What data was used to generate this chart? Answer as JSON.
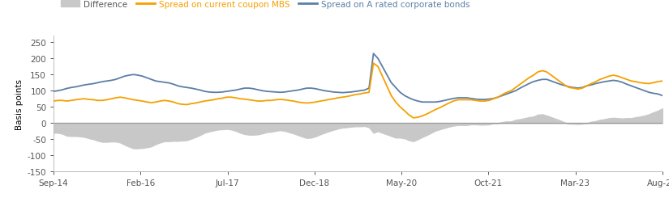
{
  "ylabel": "Basis points",
  "legend_labels": [
    "Difference",
    "Spread on current coupon MBS",
    "Spread on A rated corporate bonds"
  ],
  "background_color": "#ffffff",
  "ylim": [
    -150,
    270
  ],
  "yticks": [
    -150,
    -100,
    -50,
    0,
    50,
    100,
    150,
    200,
    250
  ],
  "x_tick_labels": [
    "Sep-14",
    "Feb-16",
    "Jul-17",
    "Dec-18",
    "May-20",
    "Oct-21",
    "Mar-23",
    "Aug-24"
  ],
  "mbs_color": "#f5a000",
  "corp_color": "#5b7fa6",
  "diff_color": "#c8c8c8",
  "zero_line_color": "#999999",
  "mbs_data": [
    68,
    70,
    70,
    68,
    70,
    72,
    74,
    75,
    73,
    72,
    70,
    70,
    72,
    75,
    78,
    80,
    78,
    75,
    72,
    70,
    68,
    65,
    63,
    65,
    68,
    70,
    68,
    65,
    60,
    58,
    57,
    60,
    62,
    65,
    68,
    70,
    72,
    75,
    77,
    80,
    80,
    78,
    75,
    74,
    72,
    70,
    68,
    68,
    70,
    70,
    72,
    73,
    72,
    70,
    68,
    65,
    63,
    62,
    63,
    65,
    68,
    70,
    73,
    75,
    78,
    80,
    82,
    85,
    88,
    90,
    93,
    95,
    185,
    175,
    145,
    115,
    85,
    65,
    50,
    38,
    25,
    16,
    18,
    22,
    28,
    35,
    42,
    48,
    55,
    62,
    68,
    72,
    72,
    72,
    72,
    70,
    68,
    68,
    70,
    75,
    80,
    88,
    95,
    100,
    110,
    120,
    130,
    140,
    148,
    158,
    162,
    158,
    148,
    138,
    128,
    118,
    110,
    108,
    105,
    108,
    115,
    122,
    128,
    135,
    140,
    145,
    148,
    145,
    140,
    135,
    130,
    128,
    125,
    123,
    122,
    125,
    128,
    130
  ],
  "corp_data": [
    98,
    100,
    103,
    107,
    110,
    112,
    115,
    118,
    120,
    122,
    125,
    128,
    130,
    132,
    135,
    140,
    145,
    148,
    150,
    148,
    145,
    140,
    135,
    130,
    128,
    126,
    124,
    120,
    115,
    112,
    110,
    108,
    105,
    102,
    98,
    96,
    95,
    95,
    96,
    98,
    100,
    102,
    105,
    108,
    108,
    106,
    103,
    100,
    98,
    97,
    96,
    95,
    96,
    98,
    100,
    102,
    105,
    108,
    108,
    106,
    103,
    100,
    98,
    96,
    95,
    94,
    95,
    96,
    98,
    100,
    102,
    108,
    215,
    200,
    175,
    150,
    125,
    110,
    95,
    85,
    78,
    72,
    68,
    65,
    65,
    65,
    65,
    67,
    70,
    73,
    76,
    78,
    78,
    78,
    76,
    74,
    73,
    73,
    74,
    76,
    80,
    85,
    90,
    95,
    100,
    108,
    115,
    122,
    128,
    132,
    135,
    135,
    130,
    125,
    120,
    116,
    112,
    110,
    108,
    110,
    115,
    118,
    122,
    125,
    128,
    130,
    132,
    130,
    126,
    120,
    115,
    110,
    105,
    100,
    95,
    92,
    90,
    85
  ]
}
